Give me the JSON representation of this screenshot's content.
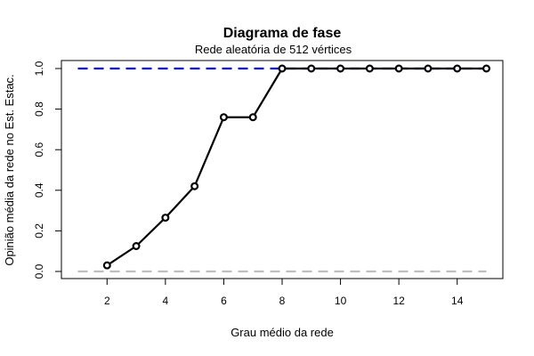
{
  "chart_data": {
    "type": "line",
    "title": "Diagrama de fase",
    "subtitle": "Rede aleatória de 512 vértices",
    "xlabel": "Grau médio da rede",
    "ylabel": "Opinião média da rede no Est. Estac.",
    "xlim": [
      1,
      15
    ],
    "ylim": [
      0,
      1
    ],
    "x_ticks": [
      "2",
      "4",
      "6",
      "8",
      "10",
      "12",
      "14"
    ],
    "y_ticks": [
      "0.0",
      "0.2",
      "0.4",
      "0.6",
      "0.8",
      "1.0"
    ],
    "x": [
      2,
      3,
      4,
      5,
      6,
      7,
      8,
      9,
      10,
      11,
      12,
      13,
      14,
      15
    ],
    "series": [
      {
        "style": "solid-markers",
        "color": "#000000",
        "values": [
          0.03,
          0.125,
          0.265,
          0.42,
          0.76,
          0.76,
          1.0,
          1.0,
          1.0,
          1.0,
          1.0,
          1.0,
          1.0,
          1.0
        ]
      }
    ],
    "reference_lines": [
      {
        "y": 1.0,
        "color": "#0000cc",
        "style": "dashed"
      },
      {
        "y": 0.0,
        "color": "#bebebe",
        "style": "dashed"
      }
    ],
    "grid": false
  }
}
